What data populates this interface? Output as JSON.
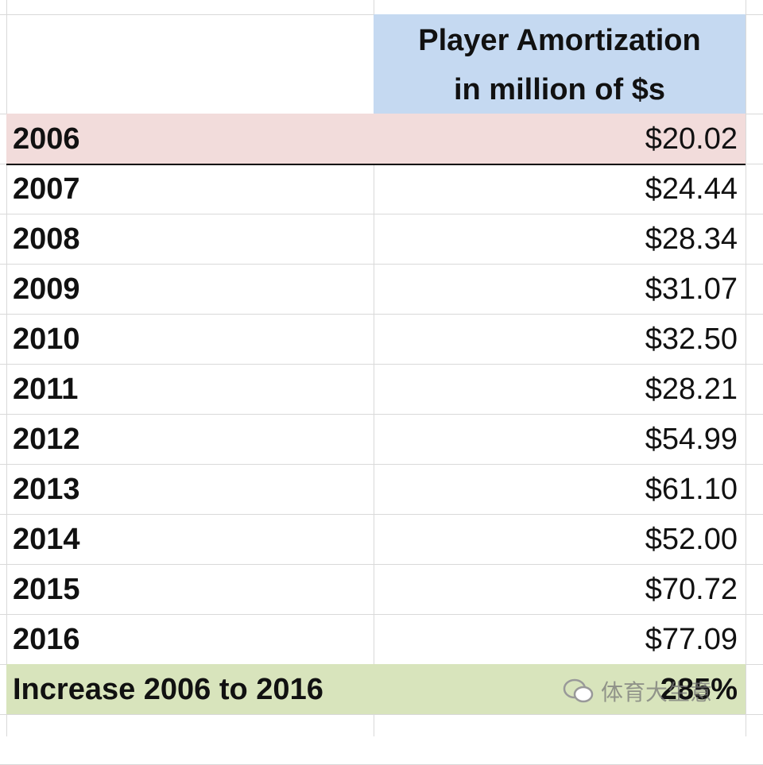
{
  "header": [
    "Player Amortization",
    "in million of $s"
  ],
  "rows": [
    [
      "2006",
      "$20.02"
    ],
    [
      "2007",
      "$24.44"
    ],
    [
      "2008",
      "$28.34"
    ],
    [
      "2009",
      "$31.07"
    ],
    [
      "2010",
      "$32.50"
    ],
    [
      "2011",
      "$28.21"
    ],
    [
      "2012",
      "$54.99"
    ],
    [
      "2013",
      "$61.10"
    ],
    [
      "2014",
      "$52.00"
    ],
    [
      "2015",
      "$70.72"
    ],
    [
      "2016",
      "$77.09"
    ]
  ],
  "summary": [
    "Increase 2006 to 2016",
    "285%"
  ],
  "watermark": "体育大生意"
}
